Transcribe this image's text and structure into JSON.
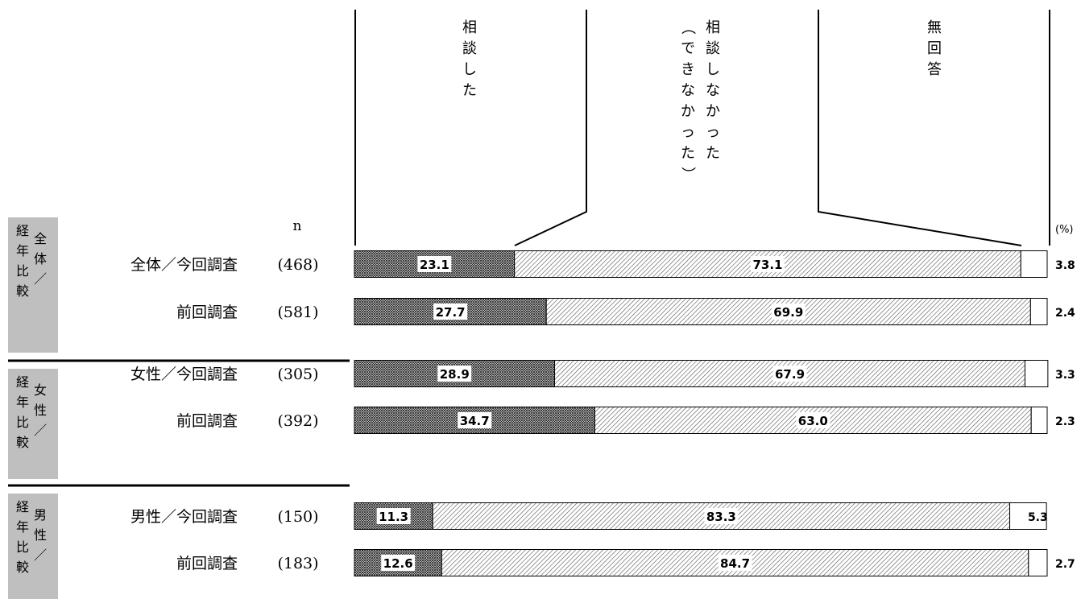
{
  "n_label": "n",
  "unit_label": "(%)",
  "chart_data": {
    "type": "bar",
    "stacked": true,
    "orientation": "horizontal",
    "xlim": [
      0,
      100
    ],
    "grid": false,
    "legend": "top-callout",
    "categories": [
      {
        "label": "全体／今回調査",
        "n": "(468)"
      },
      {
        "label": "前回調査",
        "n": "(581)"
      },
      {
        "label": "女性／今回調査",
        "n": "(305)"
      },
      {
        "label": "前回調査",
        "n": "(392)"
      },
      {
        "label": "男性／今回調査",
        "n": "(150)"
      },
      {
        "label": "前回調査",
        "n": "(183)"
      }
    ],
    "series": [
      {
        "name": "相談した",
        "values": [
          23.1,
          27.7,
          28.9,
          34.7,
          11.3,
          12.6
        ],
        "pattern": "dense",
        "color": "#555555"
      },
      {
        "name": "相談しなかった（できなかった）",
        "values": [
          73.1,
          69.9,
          67.9,
          63.0,
          83.3,
          84.7
        ],
        "pattern": "diagonal",
        "color": "#888888"
      },
      {
        "name": "無回答",
        "values": [
          3.8,
          2.4,
          3.3,
          2.3,
          5.3,
          2.7
        ],
        "pattern": "none",
        "color": "#ffffff"
      }
    ],
    "value_labels": [
      [
        "23.1",
        "73.1",
        "3.8"
      ],
      [
        "27.7",
        "69.9",
        "2.4"
      ],
      [
        "28.9",
        "67.9",
        "3.3"
      ],
      [
        "34.7",
        "63.0",
        "2.3"
      ],
      [
        "11.3",
        "83.3",
        "5.3"
      ],
      [
        "12.6",
        "84.7",
        "2.7"
      ]
    ],
    "groups": [
      {
        "side_label": "経年比較／全体"
      },
      {
        "side_label": "経年比較／女性"
      },
      {
        "side_label": "経年比較／男性"
      }
    ]
  }
}
